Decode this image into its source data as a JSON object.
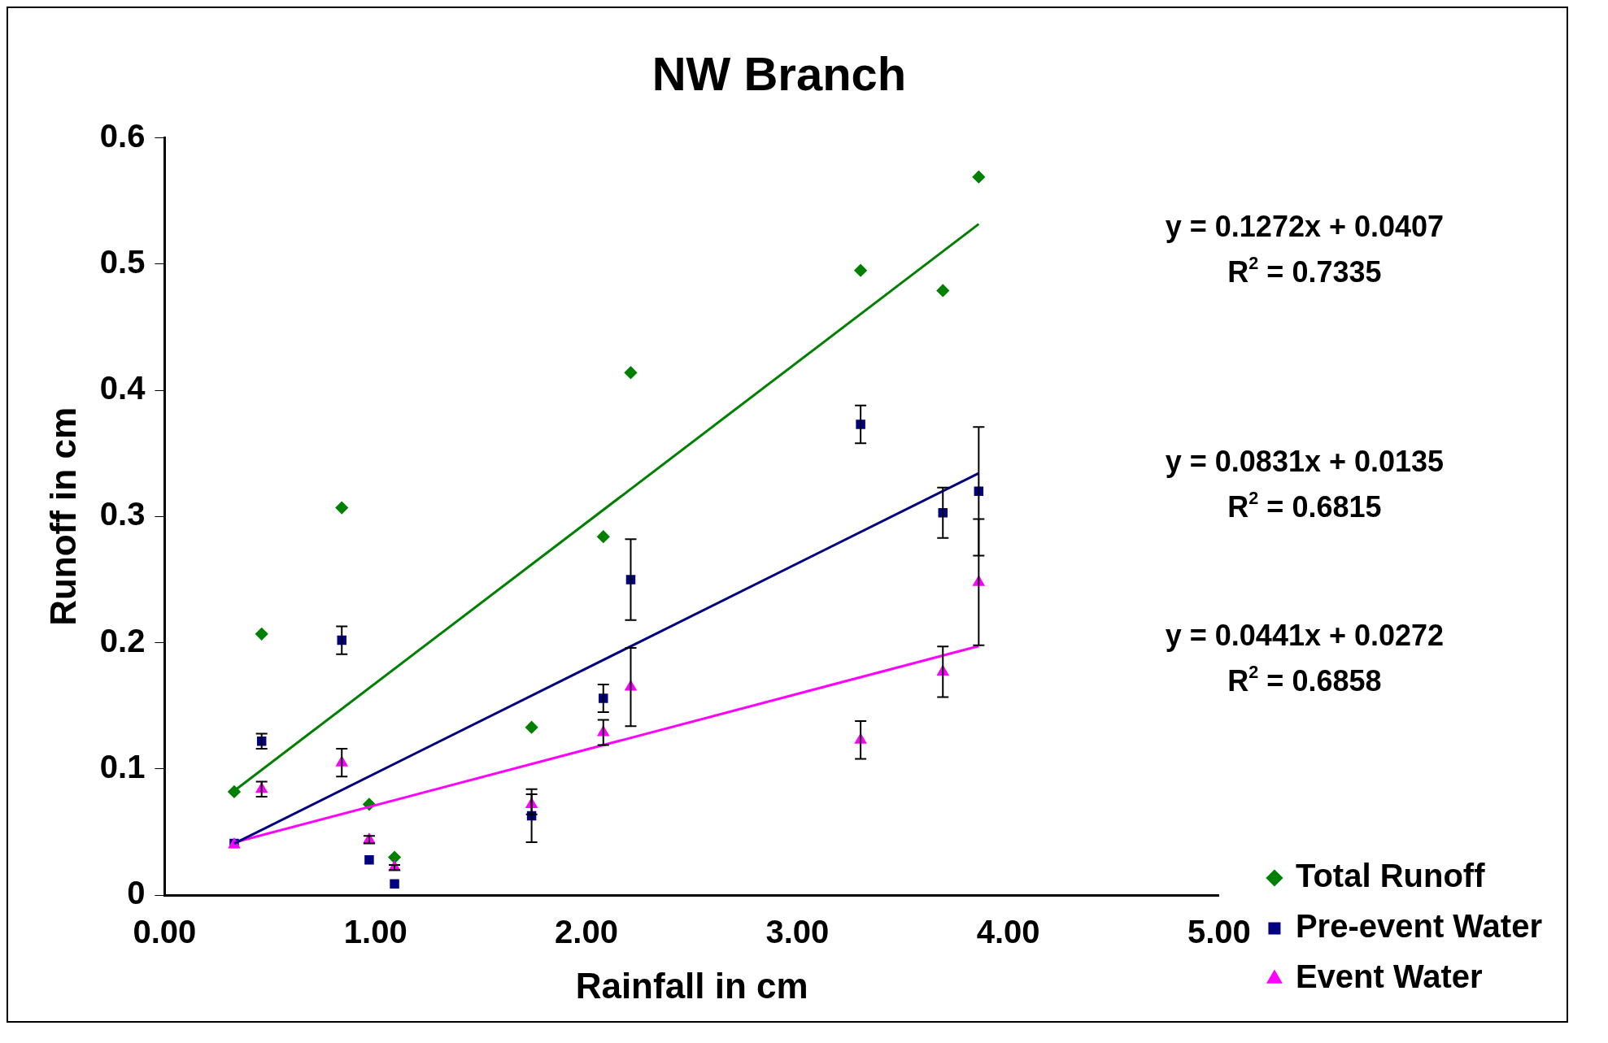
{
  "chart_data": {
    "type": "scatter",
    "title": "NW Branch",
    "xlabel": "Rainfall in cm",
    "ylabel": "Runoff in cm",
    "xlim": [
      0,
      5
    ],
    "xticks": [
      {
        "value": 0,
        "label": "0.00"
      },
      {
        "value": 1,
        "label": "1.00"
      },
      {
        "value": 2,
        "label": "2.00"
      },
      {
        "value": 3,
        "label": "3.00"
      },
      {
        "value": 4,
        "label": "4.00"
      },
      {
        "value": 5,
        "label": "5.00"
      }
    ],
    "ylim": [
      0,
      0.6
    ],
    "yticks": [
      0,
      0.1,
      0.2,
      0.3,
      0.4,
      0.5,
      0.6
    ],
    "grid": false,
    "legend": "bottom right",
    "series": [
      {
        "name": "Total Runoff",
        "color": "#008000",
        "marker": "diamond",
        "x": [
          0.33,
          0.46,
          0.84,
          0.97,
          1.09,
          1.74,
          2.08,
          2.21,
          3.3,
          3.69,
          3.86
        ],
        "values": [
          0.082,
          0.207,
          0.307,
          0.072,
          0.03,
          0.133,
          0.284,
          0.414,
          0.495,
          0.479,
          0.569
        ]
      },
      {
        "name": "Pre-event Water",
        "color": "#000080",
        "marker": "square",
        "x": [
          0.33,
          0.46,
          0.84,
          0.97,
          1.09,
          1.74,
          2.08,
          2.21,
          3.3,
          3.69,
          3.86
        ],
        "values": [
          0.041,
          0.122,
          0.202,
          0.028,
          0.009,
          0.063,
          0.156,
          0.25,
          0.373,
          0.303,
          0.32
        ],
        "errors": [
          null,
          0.006,
          0.011,
          null,
          null,
          0.021,
          0.011,
          0.032,
          0.015,
          0.02,
          0.051
        ]
      },
      {
        "name": "Event Water",
        "color": "#ff00ff",
        "marker": "triangle",
        "x": [
          0.33,
          0.46,
          0.84,
          0.97,
          1.09,
          1.74,
          2.08,
          2.21,
          3.3,
          3.69,
          3.86
        ],
        "values": [
          0.04,
          0.084,
          0.105,
          0.044,
          0.022,
          0.072,
          0.129,
          0.165,
          0.123,
          0.177,
          0.248
        ],
        "errors": [
          null,
          0.006,
          0.011,
          0.003,
          0.002,
          0.008,
          0.01,
          0.031,
          0.015,
          0.02,
          0.05
        ]
      },
      {
        "type": "line",
        "color": "#008000",
        "marker": "none",
        "x": [
          0.33,
          3.86
        ],
        "values": [
          0.0827,
          0.5317
        ]
      },
      {
        "type": "line",
        "color": "#000080",
        "marker": "none",
        "x": [
          0.33,
          3.86
        ],
        "values": [
          0.0409,
          0.3343
        ]
      },
      {
        "type": "line",
        "color": "#ff00ff",
        "marker": "none",
        "x": [
          0.33,
          3.86
        ],
        "values": [
          0.0418,
          0.1974
        ]
      }
    ],
    "annotations": [
      "y = 0.1272x + 0.0407",
      "R$^{2}$ = 0.7335",
      "y = 0.0831x + 0.0135",
      "R$^{2}$ = 0.6815",
      "y = 0.0441x + 0.0272",
      "R$^{2}$ = 0.6858"
    ]
  }
}
